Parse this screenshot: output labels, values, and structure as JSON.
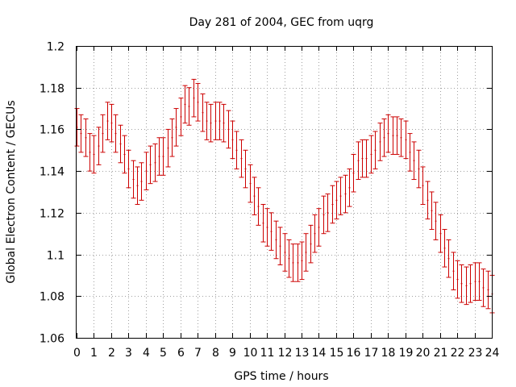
{
  "chart_data": {
    "type": "scatter",
    "title": "Day 281 of 2004, GEC from uqrg",
    "xlabel": "GPS time / hours",
    "ylabel": "Global Electron Content / GECUs",
    "xlim": [
      0,
      24
    ],
    "ylim": [
      1.06,
      1.2
    ],
    "x_ticks": [
      "0",
      "1",
      "2",
      "3",
      "4",
      "5",
      "6",
      "7",
      "8",
      "9",
      "10",
      "11",
      "12",
      "13",
      "14",
      "15",
      "16",
      "17",
      "18",
      "19",
      "20",
      "21",
      "22",
      "23",
      "24"
    ],
    "y_ticks": [
      "1.06",
      "1.08",
      "1.1",
      "1.12",
      "1.14",
      "1.16",
      "1.18",
      "1.2"
    ],
    "grid": true,
    "error_bar_color": "#cc0000",
    "error_half_width": 0.009,
    "series": [
      {
        "name": "GEC",
        "x": [
          0,
          0.25,
          0.5,
          0.75,
          1,
          1.25,
          1.5,
          1.75,
          2,
          2.25,
          2.5,
          2.75,
          3,
          3.25,
          3.5,
          3.75,
          4,
          4.25,
          4.5,
          4.75,
          5,
          5.25,
          5.5,
          5.75,
          6,
          6.25,
          6.5,
          6.75,
          7,
          7.25,
          7.5,
          7.75,
          8,
          8.25,
          8.5,
          8.75,
          9,
          9.25,
          9.5,
          9.75,
          10,
          10.25,
          10.5,
          10.75,
          11,
          11.25,
          11.5,
          11.75,
          12,
          12.25,
          12.5,
          12.75,
          13,
          13.25,
          13.5,
          13.75,
          14,
          14.25,
          14.5,
          14.75,
          15,
          15.25,
          15.5,
          15.75,
          16,
          16.25,
          16.5,
          16.75,
          17,
          17.25,
          17.5,
          17.75,
          18,
          18.25,
          18.5,
          18.75,
          19,
          19.25,
          19.5,
          19.75,
          20,
          20.25,
          20.5,
          20.75,
          21,
          21.25,
          21.5,
          21.75,
          22,
          22.25,
          22.5,
          22.75,
          23,
          23.25,
          23.5,
          23.75,
          24
        ],
        "y": [
          1.161,
          1.158,
          1.156,
          1.149,
          1.148,
          1.152,
          1.158,
          1.164,
          1.163,
          1.158,
          1.153,
          1.148,
          1.141,
          1.136,
          1.133,
          1.135,
          1.14,
          1.143,
          1.144,
          1.147,
          1.147,
          1.151,
          1.156,
          1.161,
          1.166,
          1.172,
          1.171,
          1.175,
          1.173,
          1.168,
          1.164,
          1.163,
          1.164,
          1.164,
          1.163,
          1.16,
          1.155,
          1.15,
          1.146,
          1.141,
          1.134,
          1.128,
          1.123,
          1.115,
          1.113,
          1.111,
          1.107,
          1.104,
          1.101,
          1.098,
          1.096,
          1.096,
          1.097,
          1.101,
          1.105,
          1.11,
          1.113,
          1.119,
          1.12,
          1.124,
          1.126,
          1.128,
          1.129,
          1.132,
          1.139,
          1.145,
          1.146,
          1.146,
          1.148,
          1.15,
          1.154,
          1.156,
          1.158,
          1.157,
          1.157,
          1.156,
          1.155,
          1.149,
          1.145,
          1.141,
          1.133,
          1.126,
          1.121,
          1.116,
          1.11,
          1.103,
          1.098,
          1.092,
          1.088,
          1.086,
          1.085,
          1.086,
          1.087,
          1.087,
          1.084,
          1.083,
          1.081
        ]
      }
    ]
  }
}
